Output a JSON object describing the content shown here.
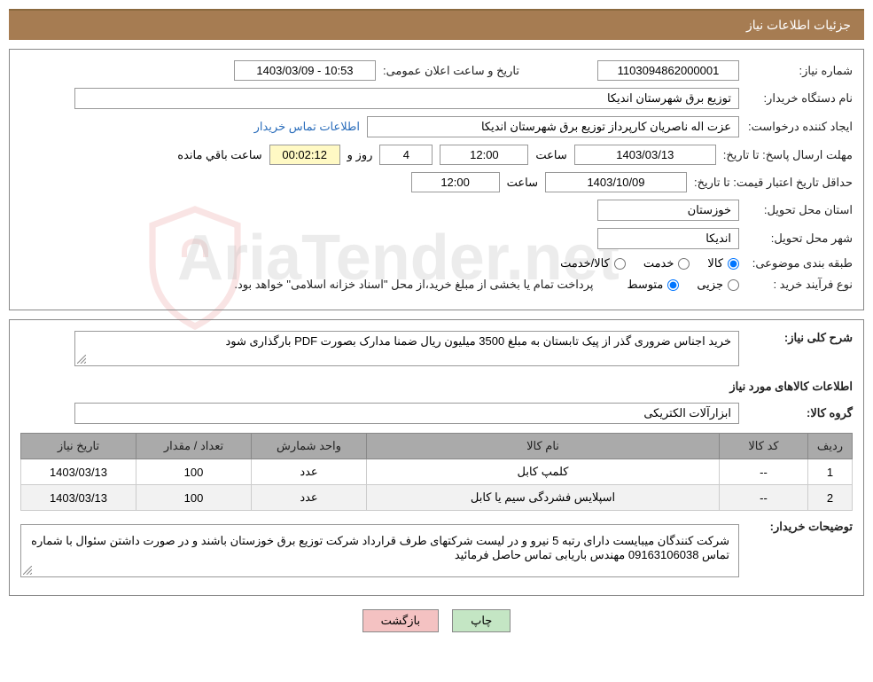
{
  "header": {
    "title": "جزئیات اطلاعات نیاز"
  },
  "watermark": {
    "text": "AriaTender.net"
  },
  "form": {
    "need_number_label": "شماره نیاز:",
    "need_number": "1103094862000001",
    "announce_datetime_label": "تاریخ و ساعت اعلان عمومی:",
    "announce_datetime": "1403/03/09 - 10:53",
    "buyer_org_label": "نام دستگاه خریدار:",
    "buyer_org": "توزیع برق شهرستان اندیکا",
    "requester_label": "ایجاد کننده درخواست:",
    "requester": "عزت اله ناصریان کارپرداز توزیع برق شهرستان اندیکا",
    "contact_link": "اطلاعات تماس خریدار",
    "deadline_label": "مهلت ارسال پاسخ: تا تاریخ:",
    "deadline_date": "1403/03/13",
    "time_label": "ساعت",
    "deadline_time": "12:00",
    "days_count": "4",
    "days_label": "روز و",
    "countdown": "00:02:12",
    "remaining_label": "ساعت باقي مانده",
    "min_validity_label": "حداقل تاریخ اعتبار قیمت: تا تاریخ:",
    "min_validity_date": "1403/10/09",
    "min_validity_time": "12:00",
    "province_label": "استان محل تحویل:",
    "province": "خوزستان",
    "city_label": "شهر محل تحویل:",
    "city": "اندیکا",
    "category_label": "طبقه بندی موضوعی:",
    "category_options": {
      "goods": "کالا",
      "service": "خدمت",
      "goods_service": "کالا/خدمت"
    },
    "purchase_type_label": "نوع فرآیند خرید :",
    "purchase_type_options": {
      "minor": "جزیی",
      "medium": "متوسط"
    },
    "purchase_note": "پرداخت تمام یا بخشی از مبلغ خرید،از محل \"اسناد خزانه اسلامی\" خواهد بود."
  },
  "details": {
    "summary_label": "شرح کلی نیاز:",
    "summary": "خرید اجناس ضروری گذر از پیک تابستان به مبلغ 3500 میلیون ریال ضمنا مدارک بصورت PDF بارگذاری شود",
    "items_section_title": "اطلاعات کالاهای مورد نیاز",
    "group_label": "گروه کالا:",
    "group": "ابزارآلات الکتریکی",
    "table": {
      "headers": {
        "row": "ردیف",
        "code": "کد کالا",
        "name": "نام کالا",
        "unit": "واحد شمارش",
        "qty": "تعداد / مقدار",
        "date": "تاریخ نیاز"
      },
      "rows": [
        {
          "row": "1",
          "code": "--",
          "name": "کلمپ کابل",
          "unit": "عدد",
          "qty": "100",
          "date": "1403/03/13"
        },
        {
          "row": "2",
          "code": "--",
          "name": "اسپلایس فشردگی سیم یا کابل",
          "unit": "عدد",
          "qty": "100",
          "date": "1403/03/13"
        }
      ]
    },
    "buyer_notes_label": "توضیحات خریدار:",
    "buyer_notes": "شرکت کنندگان میبایست دارای رتبه 5 نیرو و در لیست شرکتهای طرف قرارداد شرکت توزیع برق خوزستان باشند و در صورت داشتن سئوال با شماره تماس 09163106038 مهندس باریابی تماس حاصل فرمائید"
  },
  "buttons": {
    "print": "چاپ",
    "back": "بازگشت"
  },
  "colors": {
    "header_bg": "#a67c52",
    "header_border": "#8b6a3f",
    "table_header_bg": "#aaaaaa",
    "btn_print_bg": "#c4e6c4",
    "btn_back_bg": "#f4c2c2",
    "yellow_bg": "#fff9c4",
    "link_color": "#2a6dbb"
  }
}
